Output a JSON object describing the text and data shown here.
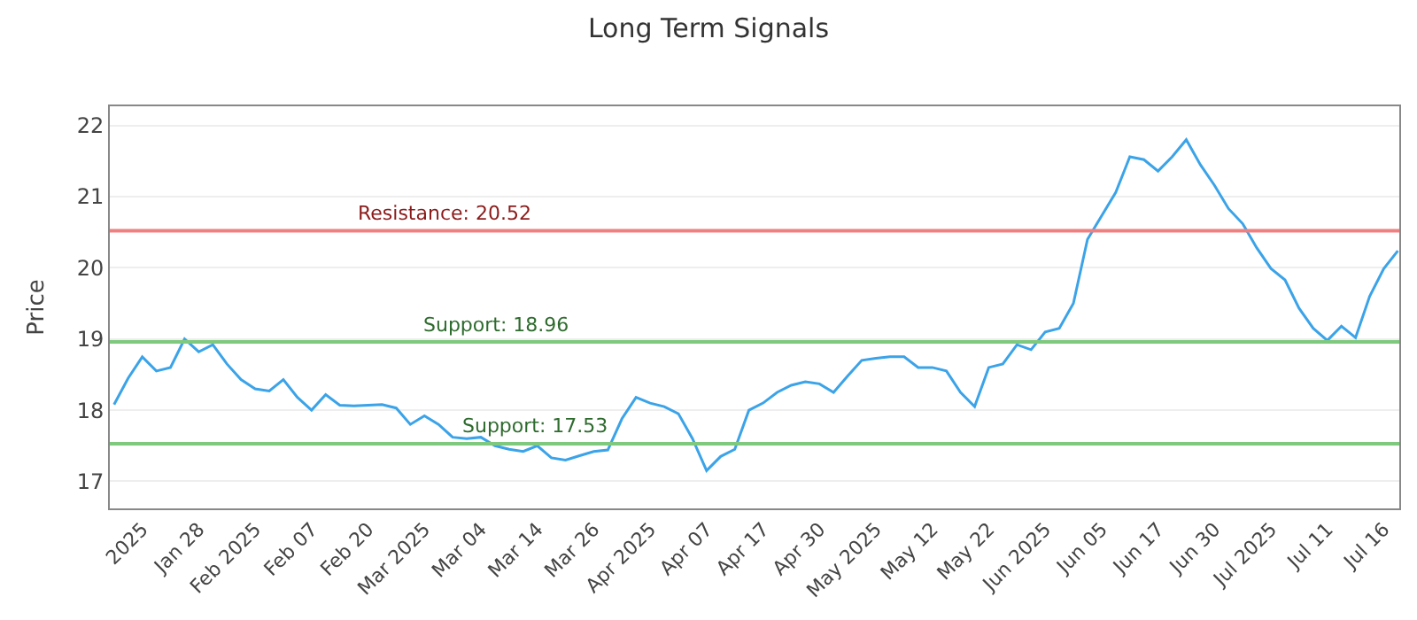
{
  "chart_data": {
    "type": "line",
    "title": "Long Term Signals",
    "ylabel": "Price",
    "categories": [
      null,
      null,
      "2025",
      null,
      null,
      null,
      "Jan 28",
      null,
      null,
      null,
      "Feb 2025",
      null,
      null,
      null,
      "Feb 07",
      null,
      null,
      null,
      "Feb 20",
      null,
      null,
      null,
      "Mar 2025",
      null,
      null,
      null,
      "Mar 04",
      null,
      null,
      null,
      "Mar 14",
      null,
      null,
      null,
      "Mar 26",
      null,
      null,
      null,
      "Apr 2025",
      null,
      null,
      null,
      "Apr 07",
      null,
      null,
      null,
      "Apr 17",
      null,
      null,
      null,
      "Apr 30",
      null,
      null,
      null,
      "May 2025",
      null,
      null,
      null,
      "May 12",
      null,
      null,
      null,
      "May 22",
      null,
      null,
      null,
      "Jun 2025",
      null,
      null,
      null,
      "Jun 05",
      null,
      null,
      null,
      "Jun 17",
      null,
      null,
      null,
      "Jun 30",
      null,
      null,
      null,
      "Jul 2025",
      null,
      null,
      null,
      "Jul 11",
      null,
      null,
      null,
      "Jul 16",
      null
    ],
    "series": [
      {
        "color": "#3ba3e8",
        "values": [
          18.08,
          18.45,
          18.75,
          18.55,
          18.6,
          19.0,
          18.82,
          18.92,
          18.65,
          18.43,
          18.3,
          18.27,
          18.43,
          18.18,
          18.0,
          18.22,
          18.07,
          18.06,
          18.07,
          18.08,
          18.03,
          17.8,
          17.92,
          17.8,
          17.62,
          17.6,
          17.62,
          17.5,
          17.45,
          17.42,
          17.5,
          17.33,
          17.3,
          17.36,
          17.42,
          17.44,
          17.88,
          18.18,
          18.1,
          18.05,
          17.95,
          17.6,
          17.15,
          17.35,
          17.45,
          18.0,
          18.1,
          18.25,
          18.35,
          18.4,
          18.37,
          18.25,
          18.48,
          18.7,
          18.73,
          18.75,
          18.75,
          18.6,
          18.6,
          18.55,
          18.25,
          18.05,
          18.6,
          18.65,
          18.92,
          18.85,
          19.1,
          19.15,
          19.5,
          20.4,
          20.73,
          21.06,
          21.56,
          21.52,
          21.36,
          21.56,
          21.8,
          21.45,
          21.16,
          20.83,
          20.62,
          20.28,
          19.99,
          19.83,
          19.43,
          19.15,
          18.98,
          19.18,
          19.02,
          19.6,
          19.99,
          20.24
        ]
      }
    ],
    "ylim": [
      16.62,
      22.27
    ],
    "yticks": [
      17,
      18,
      19,
      20,
      21,
      22
    ],
    "grid": "y",
    "legend": false,
    "marker": "none",
    "line_style": "solid",
    "ref_lines": [
      {
        "axis": "y",
        "value": 20.52,
        "label": "Resistance: 20.52",
        "color": "#f08080"
      },
      {
        "axis": "y",
        "value": 18.96,
        "label": "Support: 18.96",
        "color": "#7fc97f"
      },
      {
        "axis": "y",
        "value": 17.53,
        "label": "Support: 17.53",
        "color": "#7fc97f"
      }
    ]
  }
}
